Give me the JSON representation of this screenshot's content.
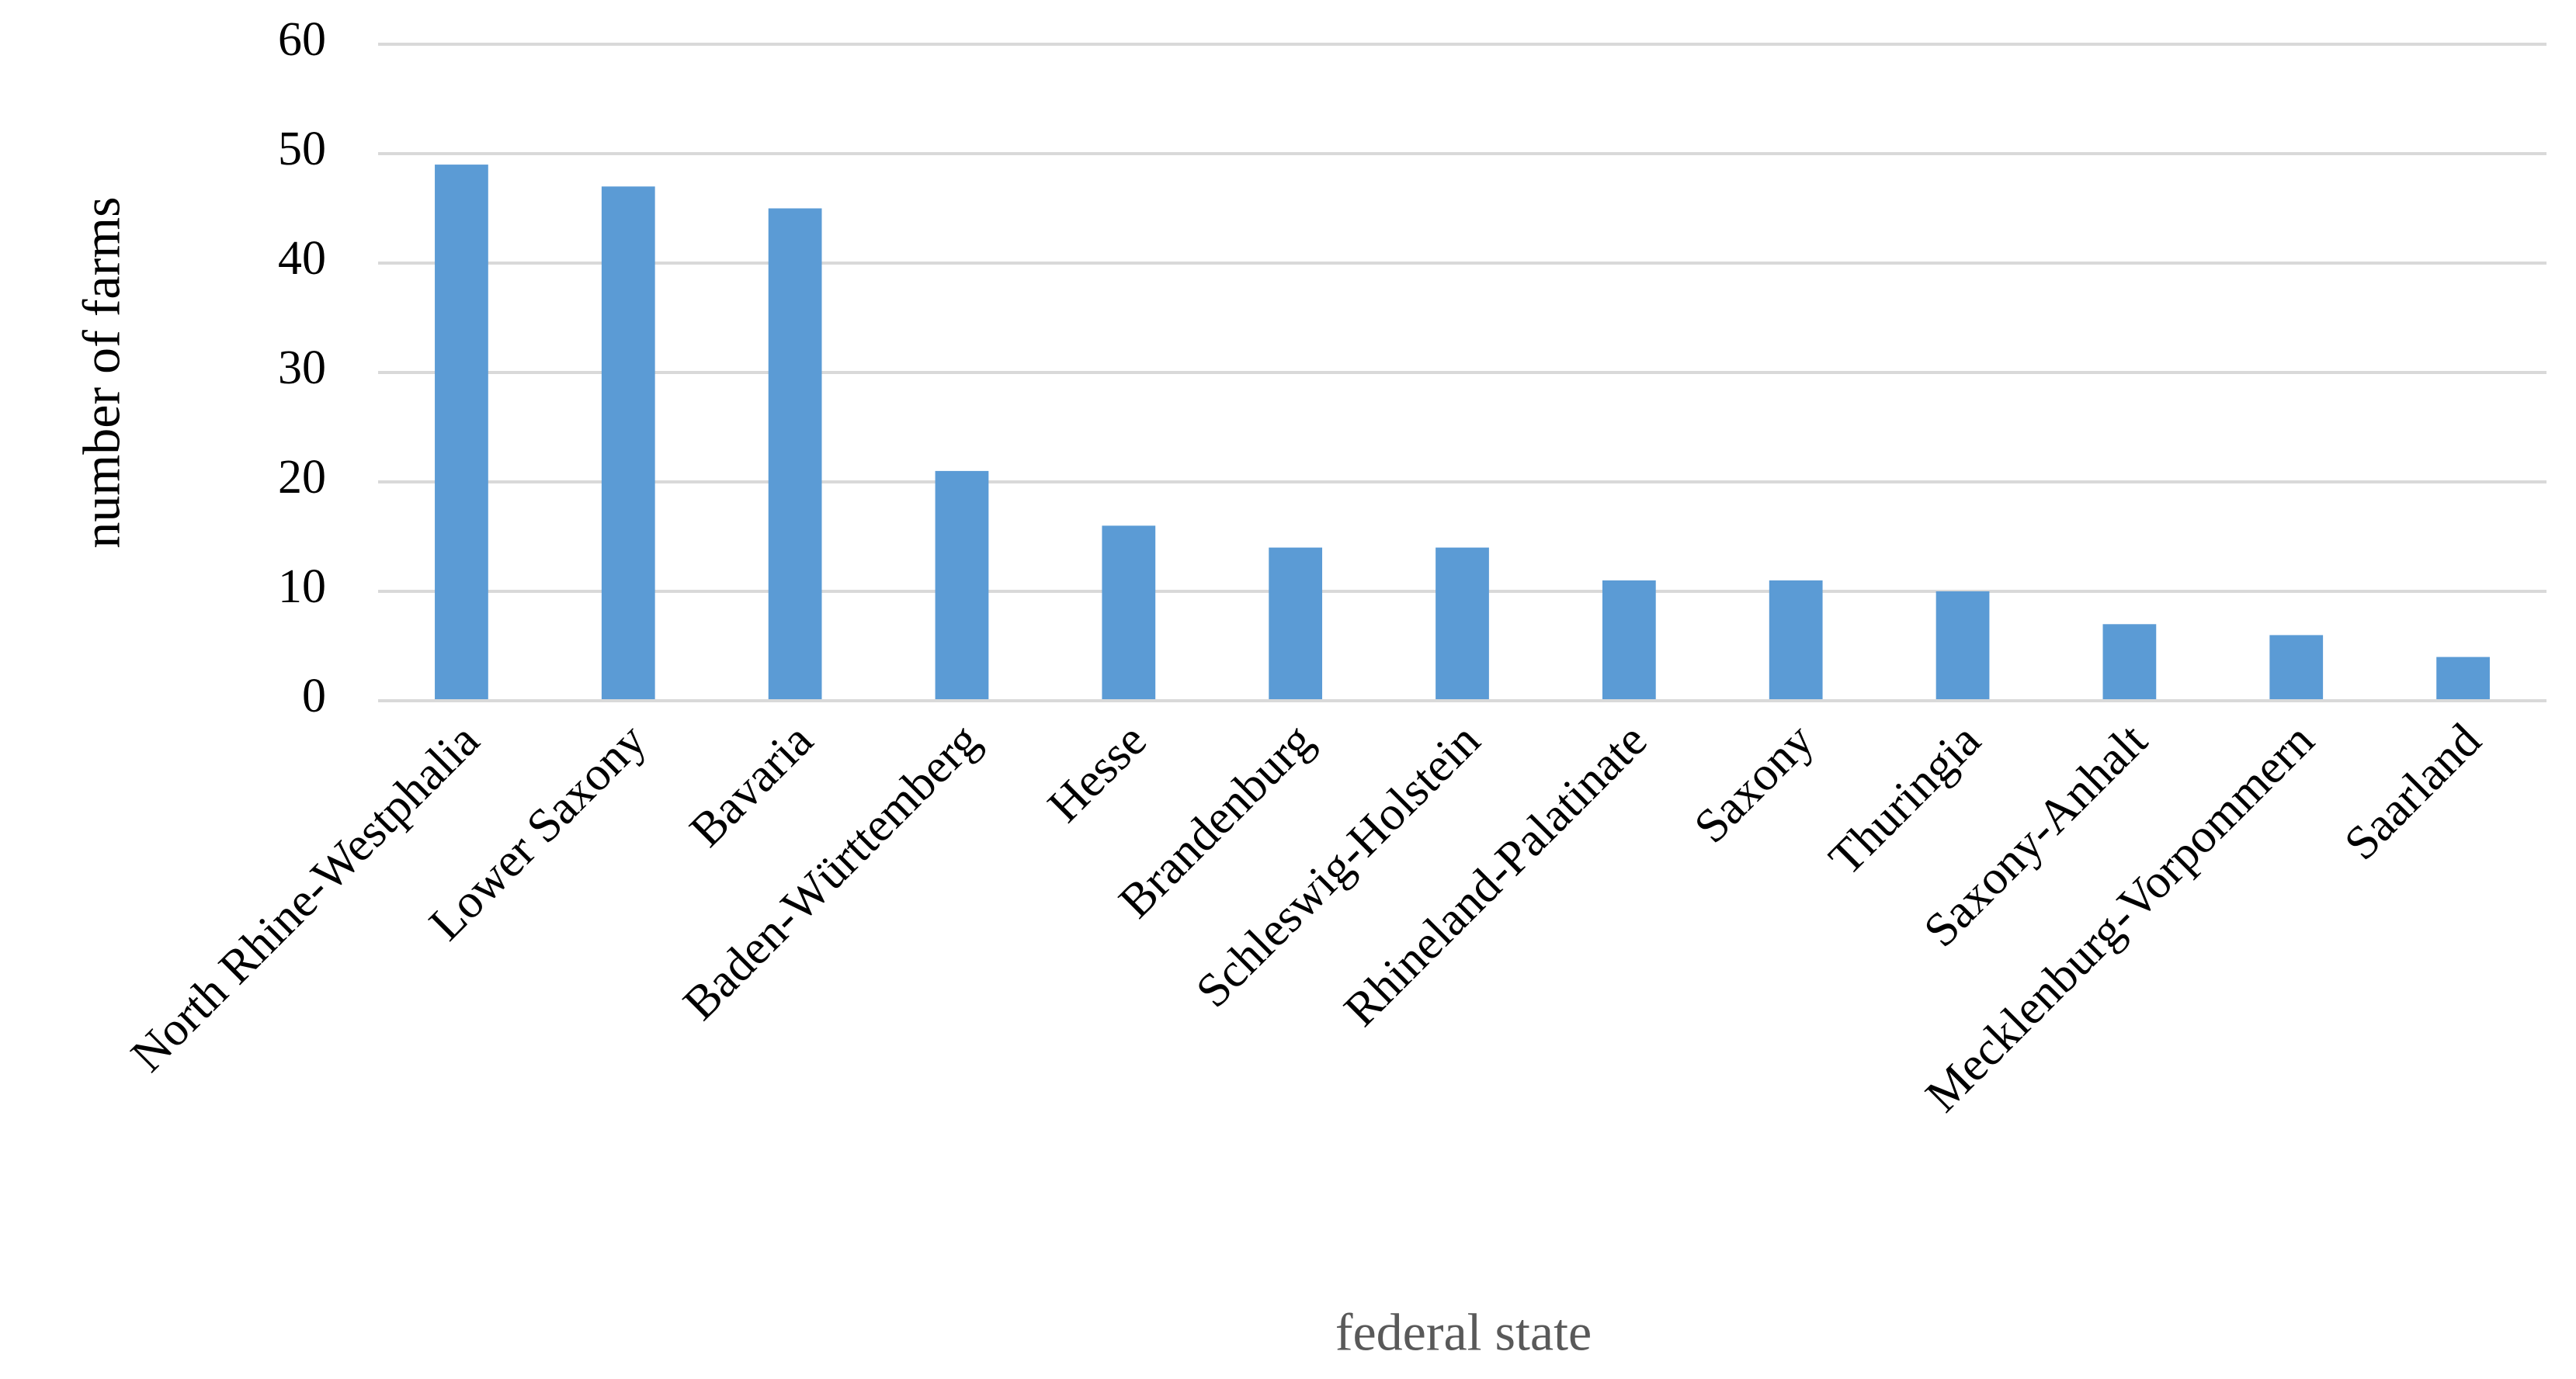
{
  "chart_data": {
    "type": "bar",
    "x_label": "federal state",
    "y_label": "number of farms",
    "categories": [
      "North Rhine-Westphalia",
      "Lower Saxony",
      "Bavaria",
      "Baden-Württemberg",
      "Hesse",
      "Brandenburg",
      "Schleswig-Holstein",
      "Rhineland-Palatinate",
      "Saxony",
      "Thuringia",
      "Saxony-Anhalt",
      "Mecklenburg-Vorpommern",
      "Saarland"
    ],
    "values": [
      49,
      47,
      45,
      21,
      16,
      14,
      14,
      11,
      11,
      10,
      7,
      6,
      4
    ],
    "color": "#5b9bd5",
    "ylim": [
      0,
      60
    ],
    "yticks": [
      0,
      10,
      20,
      30,
      40,
      50,
      60
    ],
    "grid": true
  }
}
